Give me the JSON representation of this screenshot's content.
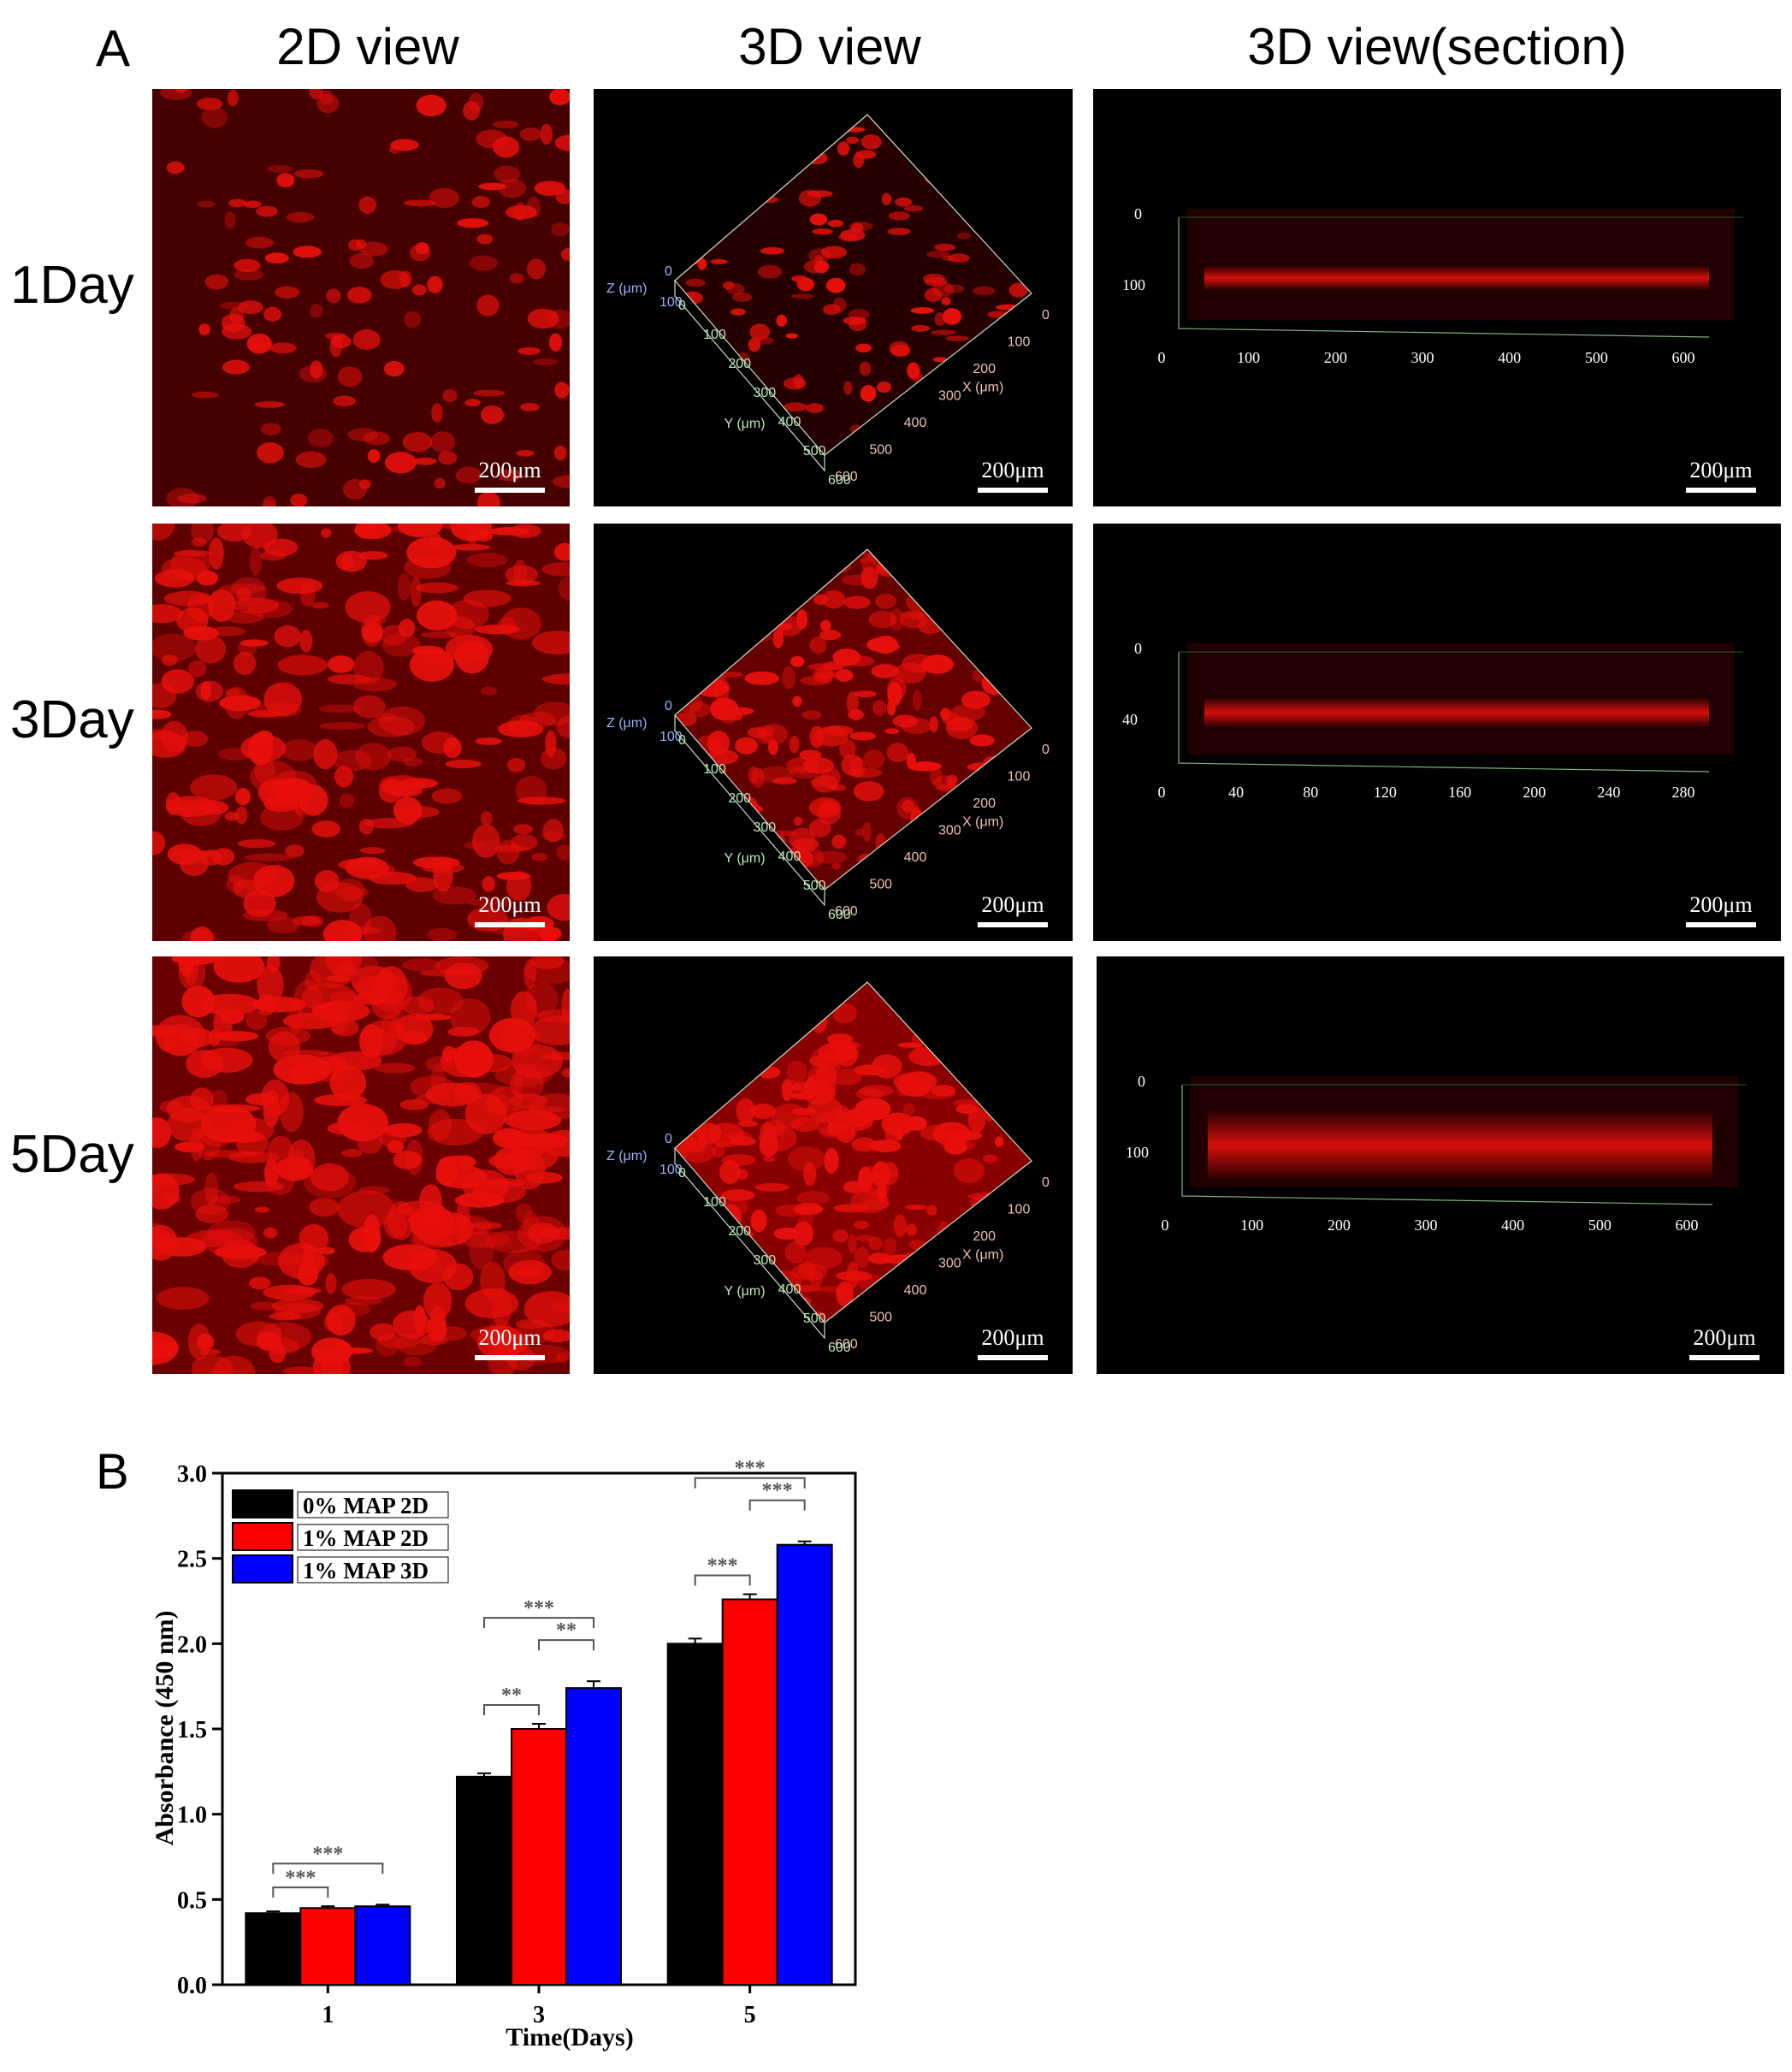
{
  "panel_a": {
    "letter": "A",
    "column_headers": [
      "2D view",
      "3D view",
      "3D view(section)"
    ],
    "row_headers": [
      "1Day",
      "3Day",
      "5Day"
    ],
    "scale_bar": "200μm",
    "axes_3d": {
      "z_label": "Z (μm)",
      "x_label": "X (μm)",
      "y_label": "Y (μm)",
      "tick_values": [
        "0",
        "100",
        "200",
        "300",
        "400",
        "500",
        "600"
      ],
      "z_ticks": [
        "0",
        "100"
      ]
    },
    "sections": [
      {
        "depth_ticks": [
          "0",
          "100"
        ],
        "x_ticks": [
          "0",
          "100",
          "200",
          "300",
          "400",
          "500",
          "600"
        ]
      },
      {
        "depth_ticks": [
          "0",
          "40"
        ],
        "x_ticks": [
          "0",
          "40",
          "80",
          "120",
          "160",
          "200",
          "240",
          "280"
        ]
      },
      {
        "depth_ticks": [
          "0",
          "100"
        ],
        "x_ticks": [
          "0",
          "100",
          "200",
          "300",
          "400",
          "500",
          "600"
        ]
      }
    ],
    "colors": {
      "fluorescence": "#e8100c",
      "background": "#000000"
    }
  },
  "panel_b": {
    "letter": "B"
  },
  "chart_data": {
    "type": "bar",
    "xlabel": "Time(Days)",
    "ylabel": "Absorbance (450 nm)",
    "categories": [
      "1",
      "3",
      "5"
    ],
    "ylim": [
      0.0,
      3.0
    ],
    "yticks": [
      "0.0",
      "0.5",
      "1.0",
      "1.5",
      "2.0",
      "2.5",
      "3.0"
    ],
    "legend_position": "top-left",
    "series": [
      {
        "name": "0% MAP 2D",
        "color": "#000000",
        "values": [
          0.42,
          1.22,
          2.0
        ],
        "errors": [
          0.01,
          0.02,
          0.03
        ]
      },
      {
        "name": "1% MAP 2D",
        "color": "#ff0000",
        "values": [
          0.45,
          1.5,
          2.26
        ],
        "errors": [
          0.01,
          0.03,
          0.03
        ]
      },
      {
        "name": "1% MAP 3D",
        "color": "#0000ff",
        "values": [
          0.46,
          1.74,
          2.58
        ],
        "errors": [
          0.01,
          0.04,
          0.02
        ]
      }
    ],
    "significance": [
      {
        "group": 0,
        "from": 0,
        "to": 1,
        "label": "***",
        "level": 0
      },
      {
        "group": 0,
        "from": 0,
        "to": 2,
        "label": "***",
        "level": 1
      },
      {
        "group": 1,
        "from": 0,
        "to": 1,
        "label": "**",
        "level": 0
      },
      {
        "group": 1,
        "from": 1,
        "to": 2,
        "label": "**",
        "level": 1
      },
      {
        "group": 1,
        "from": 0,
        "to": 2,
        "label": "***",
        "level": 2
      },
      {
        "group": 2,
        "from": 0,
        "to": 1,
        "label": "***",
        "level": 0
      },
      {
        "group": 2,
        "from": 1,
        "to": 2,
        "label": "***",
        "level": 1
      },
      {
        "group": 2,
        "from": 0,
        "to": 2,
        "label": "***",
        "level": 2
      }
    ]
  }
}
